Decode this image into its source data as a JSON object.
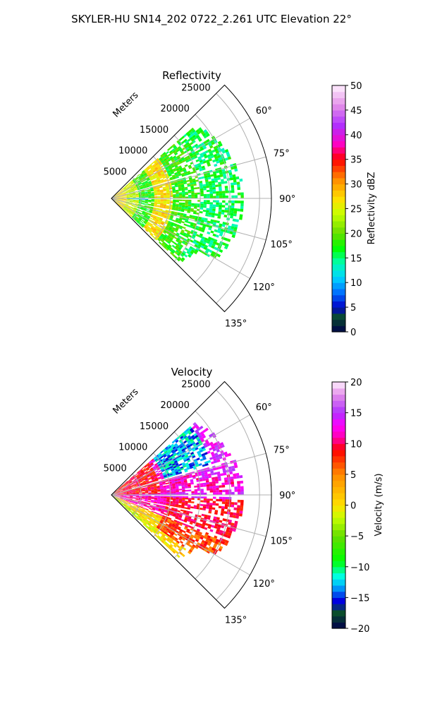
{
  "suptitle": "SKYLER-HU  SN14_202  0722_2.261 UTC Elevation 22°",
  "chart_data": [
    {
      "type": "heatmap",
      "projection": "polar-sector",
      "title": "Reflectivity",
      "radial_label": "Meters",
      "radial_ticks": [
        "5000",
        "10000",
        "15000",
        "20000",
        "25000"
      ],
      "radial_values": [
        5000,
        10000,
        15000,
        20000,
        25000
      ],
      "radial_max": 27000,
      "angle_range_deg": [
        45,
        135
      ],
      "angle_ticks": [
        "60°",
        "75°",
        "90°",
        "105°",
        "120°",
        "135°"
      ],
      "angle_values": [
        60,
        75,
        90,
        105,
        120,
        135
      ],
      "data_max_range": 22000,
      "gap_azimuths_deg": [
        89.5,
        73,
        100.5,
        110
      ],
      "colorbar": {
        "label": "Reflectivity dBZ",
        "range": [
          0,
          50
        ],
        "ticks": [
          "0",
          "5",
          "10",
          "15",
          "20",
          "25",
          "30",
          "35",
          "40",
          "45",
          "50"
        ],
        "tick_values": [
          0,
          5,
          10,
          15,
          20,
          25,
          30,
          35,
          40,
          45,
          50
        ],
        "stops": [
          {
            "v": 0,
            "color": "#00004a"
          },
          {
            "v": 3,
            "color": "#0a4d2c"
          },
          {
            "v": 5,
            "color": "#0000c8"
          },
          {
            "v": 8,
            "color": "#0070ff"
          },
          {
            "v": 11,
            "color": "#00d4ff"
          },
          {
            "v": 14,
            "color": "#00ffb0"
          },
          {
            "v": 17,
            "color": "#00ff00"
          },
          {
            "v": 20,
            "color": "#66dd00"
          },
          {
            "v": 24,
            "color": "#c8ff00"
          },
          {
            "v": 27,
            "color": "#ffe000"
          },
          {
            "v": 31,
            "color": "#ff8a00"
          },
          {
            "v": 35,
            "color": "#ff0000"
          },
          {
            "v": 38,
            "color": "#ff00c0"
          },
          {
            "v": 42,
            "color": "#b030ff"
          },
          {
            "v": 46,
            "color": "#e490e8"
          },
          {
            "v": 50,
            "color": "#fff0ff"
          }
        ]
      },
      "typical_values": {
        "near": 27,
        "mid": 18,
        "far": 16
      },
      "bands": [
        {
          "r": [
            2500,
            4500
          ],
          "v": 24
        },
        {
          "r": [
            7000,
            10000
          ],
          "v": 27
        }
      ]
    },
    {
      "type": "heatmap",
      "projection": "polar-sector",
      "title": "Velocity",
      "radial_label": "Meters",
      "radial_ticks": [
        "5000",
        "10000",
        "15000",
        "20000",
        "25000"
      ],
      "radial_values": [
        5000,
        10000,
        15000,
        20000,
        25000
      ],
      "radial_max": 27000,
      "angle_range_deg": [
        45,
        135
      ],
      "angle_ticks": [
        "60°",
        "75°",
        "90°",
        "105°",
        "120°",
        "135°"
      ],
      "angle_values": [
        60,
        75,
        90,
        105,
        120,
        135
      ],
      "data_max_range": 22000,
      "gap_azimuths_deg": [
        89.5,
        73,
        100.5,
        110
      ],
      "colorbar": {
        "label": "Velocity (m/s)",
        "range": [
          -20,
          20
        ],
        "ticks": [
          "−20",
          "−15",
          "−10",
          "−5",
          "0",
          "5",
          "10",
          "15",
          "20"
        ],
        "tick_values": [
          -20,
          -15,
          -10,
          -5,
          0,
          5,
          10,
          15,
          20
        ],
        "stops": [
          {
            "v": -20,
            "color": "#00004a"
          },
          {
            "v": -17.5,
            "color": "#0a4d2c"
          },
          {
            "v": -15.5,
            "color": "#0000e0"
          },
          {
            "v": -13,
            "color": "#00b8ff"
          },
          {
            "v": -11.5,
            "color": "#00ffe0"
          },
          {
            "v": -9,
            "color": "#00ff00"
          },
          {
            "v": -5,
            "color": "#66dd00"
          },
          {
            "v": -2,
            "color": "#c8ff00"
          },
          {
            "v": 0,
            "color": "#ffe000"
          },
          {
            "v": 5,
            "color": "#ff8a00"
          },
          {
            "v": 9,
            "color": "#ff0000"
          },
          {
            "v": 11,
            "color": "#ff00b0"
          },
          {
            "v": 13,
            "color": "#ff00ff"
          },
          {
            "v": 15,
            "color": "#b030ff"
          },
          {
            "v": 18,
            "color": "#e490e8"
          },
          {
            "v": 20,
            "color": "#fff0ff"
          }
        ]
      }
    }
  ]
}
